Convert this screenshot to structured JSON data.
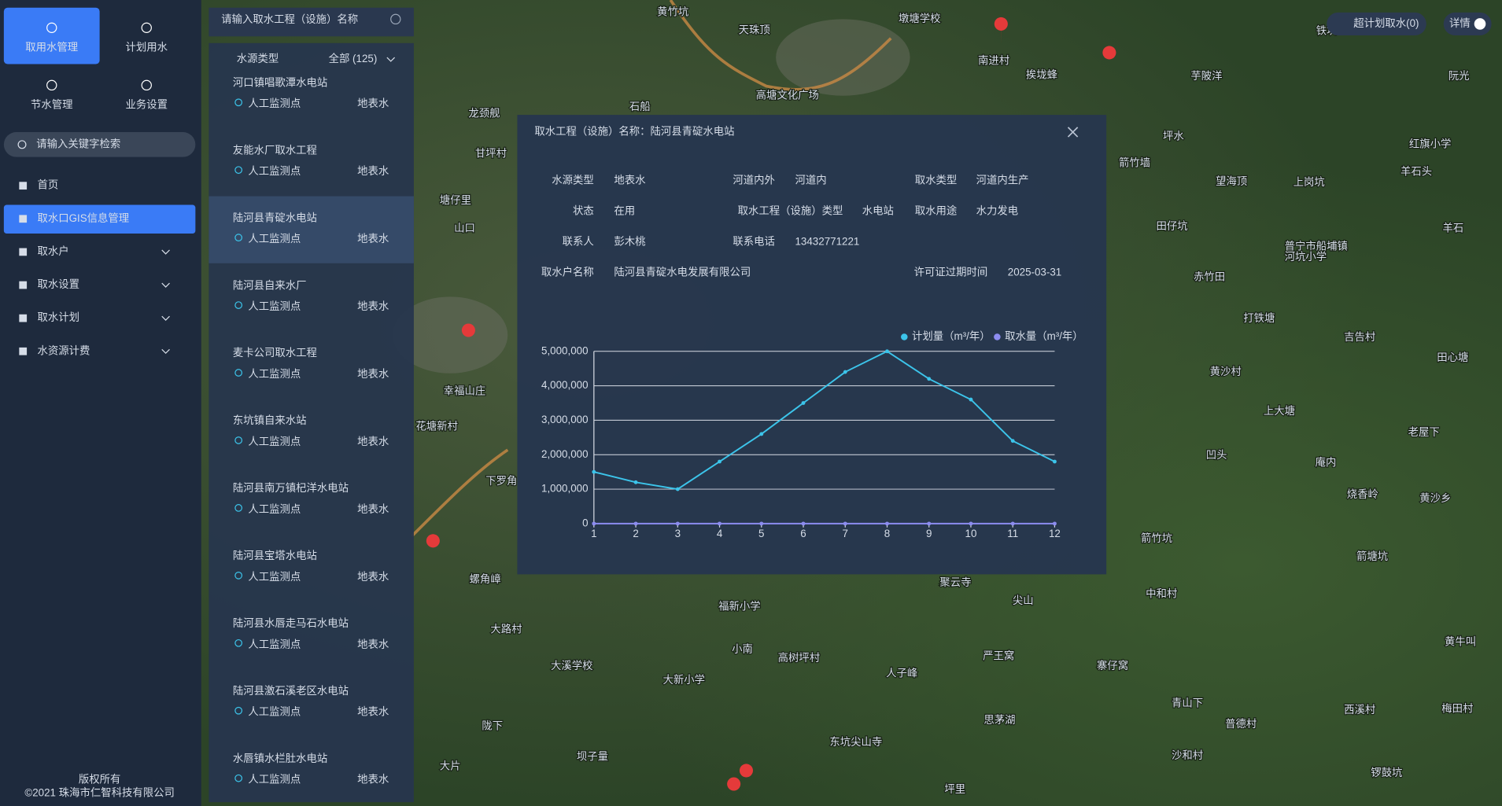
{
  "nav": {
    "tabs": [
      "取用水管理",
      "计划用水",
      "节水管理",
      "业务设置"
    ],
    "search_placeholder": "请输入关键字检索",
    "menu": [
      "首页",
      "取水口GIS信息管理",
      "取水户",
      "取水设置",
      "取水计划",
      "水资源计费"
    ],
    "footer": [
      "版权所有",
      "©2021 珠海市仁智科技有限公司"
    ]
  },
  "list": {
    "search_placeholder": "请输入取水工程（设施）名称",
    "filter_label": "水源类型",
    "filter_value": "全部 (125)",
    "items": [
      {
        "name": "河口镇唱歌潭水电站",
        "monitor": "人工监测点",
        "source": "地表水"
      },
      {
        "name": "友能水厂取水工程",
        "monitor": "人工监测点",
        "source": "地表水"
      },
      {
        "name": "陆河县青碇水电站",
        "monitor": "人工监测点",
        "source": "地表水"
      },
      {
        "name": "陆河县自来水厂",
        "monitor": "人工监测点",
        "source": "地表水"
      },
      {
        "name": "麦卡公司取水工程",
        "monitor": "人工监测点",
        "source": "地表水"
      },
      {
        "name": "东坑镇自来水站",
        "monitor": "人工监测点",
        "source": "地表水"
      },
      {
        "name": "陆河县南万镇杞洋水电站",
        "monitor": "人工监测点",
        "source": "地表水"
      },
      {
        "name": "陆河县宝塔水电站",
        "monitor": "人工监测点",
        "source": "地表水"
      },
      {
        "name": "陆河县水唇走马石水电站",
        "monitor": "人工监测点",
        "source": "地表水"
      },
      {
        "name": "陆河县激石溪老区水电站",
        "monitor": "人工监测点",
        "source": "地表水"
      },
      {
        "name": "水唇镇水栏肚水电站",
        "monitor": "人工监测点",
        "source": "地表水"
      }
    ]
  },
  "map": {
    "buttons": [
      "超计划取水(0)",
      "详情"
    ],
    "labels": [
      "黄竹坑",
      "天珠顶",
      "墩塘学校",
      "南进村",
      "挨垅蜂",
      "芋陂洋",
      "阮光",
      "高塘文化广场",
      "石船",
      "龙颈舰",
      "甘坪村",
      "坪水",
      "箭竹墙",
      "望海顶",
      "上岗坑",
      "红旗小学",
      "羊石头",
      "田仔坑",
      "羊石",
      "普宁市船埔镇",
      "河坑小学",
      "赤竹田",
      "打铁塘",
      "吉告村",
      "黄沙村",
      "上大塘",
      "田心塘",
      "老屋下",
      "凹头",
      "庵内",
      "烧香岭",
      "黄沙乡",
      "箭竹坑",
      "箭塘坑",
      "中和村",
      "聚云寺",
      "尖山",
      "福新小学",
      "大路村",
      "小南",
      "高树坪村",
      "严王窝",
      "寨仔窝",
      "人子峰",
      "大溪学校",
      "大新小学",
      "梅田村",
      "西溪村",
      "青山下",
      "普德村",
      "思茅湖",
      "东坑尖山寺",
      "沙和村",
      "坝子量",
      "大片",
      "陇下",
      "锣鼓坑",
      "坪里",
      "黄牛叫",
      "下罗角",
      "螺角嶂",
      "花塘新村",
      "幸福山庄",
      "山口",
      "塘仔里",
      "铁坑"
    ]
  },
  "popup": {
    "title": "取水工程（设施）名称：陆河县青碇水电站",
    "fields": [
      {
        "label": "水源类型",
        "value": "地表水"
      },
      {
        "label": "河道内外",
        "value": "河道内"
      },
      {
        "label": "取水类型",
        "value": "河道内生产"
      },
      {
        "label": "状态",
        "value": "在用"
      },
      {
        "label": "取水工程（设施）类型",
        "value": "水电站"
      },
      {
        "label": "取水用途",
        "value": "水力发电"
      },
      {
        "label": "联系人",
        "value": "彭木桃"
      },
      {
        "label": "联系电话",
        "value": "13432771221"
      },
      {
        "label": "取水户名称",
        "value": "陆河县青碇水电发展有限公司"
      },
      {
        "label": "许可证过期时间",
        "value": "2025-03-31"
      }
    ]
  },
  "chart_data": {
    "type": "line",
    "x": [
      1,
      2,
      3,
      4,
      5,
      6,
      7,
      8,
      9,
      10,
      11,
      12
    ],
    "xlim": [
      1,
      12
    ],
    "xticks": [
      1,
      2,
      3,
      4,
      5,
      6,
      7,
      8,
      9,
      10,
      11,
      12
    ],
    "ylim": [
      0,
      5000000
    ],
    "yticks": [
      0,
      {
        "value": 1000000,
        "label": "1,000,000"
      },
      {
        "value": 2000000,
        "label": "2,000,000"
      },
      {
        "value": 3000000,
        "label": "3,000,000"
      },
      {
        "value": 4000000,
        "label": "4,000,000"
      },
      {
        "value": 5000000,
        "label": "5,000,000"
      }
    ],
    "grid": true,
    "legend": "top-right",
    "series": [
      {
        "name": "计划量（m³/年）",
        "color": "#3cc4ea",
        "values": [
          1500000,
          1200000,
          1000000,
          1800000,
          2600000,
          3500000,
          4400000,
          5000000,
          4200000,
          3600000,
          2400000,
          1800000
        ]
      },
      {
        "name": "取水量（m³/年）",
        "color": "#8c8cf0",
        "values": [
          0,
          0,
          0,
          0,
          0,
          0,
          0,
          0,
          0,
          0,
          0,
          0
        ]
      }
    ]
  }
}
